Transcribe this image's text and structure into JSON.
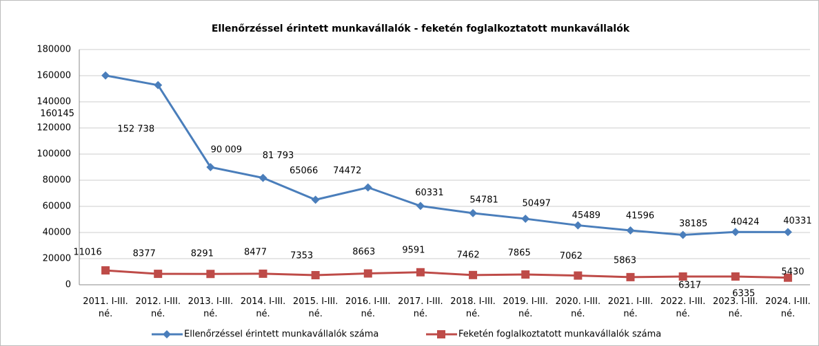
{
  "chart_data": {
    "type": "line",
    "title": "Ellenőrzéssel érintett munkavállalók - feketén foglalkoztatott munkavállalók",
    "categories": [
      "2011. I-III. né.",
      "2012. I-III. né.",
      "2013. I-III. né.",
      "2014. I-III. né.",
      "2015. I-III. né.",
      "2016. I-III. né.",
      "2017. I-III. né.",
      "2018. I-III. né.",
      "2019. I-III. né.",
      "2020. I-III. né.",
      "2021. I-III. né.",
      "2022. I-III. né.",
      "2023. I-III. né.",
      "2024. I-III. né."
    ],
    "series": [
      {
        "name": "Ellenőrzéssel érintett munkavállalók száma",
        "color": "#4a7ebb",
        "marker": "diamond",
        "values": [
          160145,
          152738,
          90009,
          81793,
          65066,
          74472,
          60331,
          54781,
          50497,
          45489,
          41596,
          38185,
          40424,
          40331
        ],
        "value_labels": [
          "160145",
          "152 738",
          "90 009",
          "81 793",
          "65066",
          "74472",
          "60331",
          "54781",
          "50497",
          "45489",
          "41596",
          "38185",
          "40424",
          "40331"
        ]
      },
      {
        "name": "Feketén foglalkoztatott munkavállalók száma",
        "color": "#be4b48",
        "marker": "square",
        "values": [
          11016,
          8377,
          8291,
          8477,
          7353,
          8663,
          9591,
          7462,
          7865,
          7062,
          5863,
          6317,
          6335,
          5430
        ]
      }
    ],
    "ylim": [
      0,
      180000
    ],
    "yticks": [
      0,
      20000,
      40000,
      60000,
      80000,
      100000,
      120000,
      140000,
      160000,
      180000
    ],
    "grid": true,
    "legend": "bottom"
  }
}
